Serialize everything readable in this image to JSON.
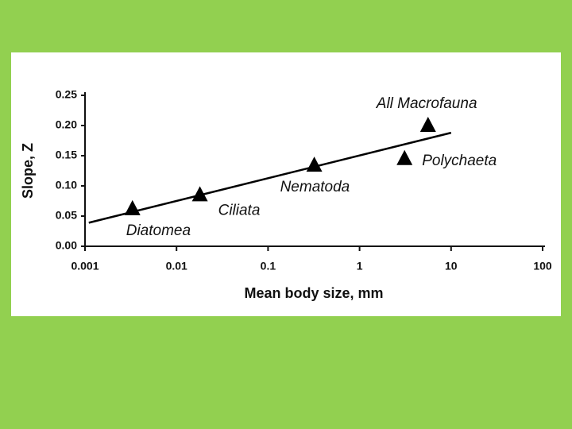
{
  "chart_data": {
    "type": "scatter",
    "xlabel": "Mean body size, mm",
    "ylabel": "Slope, Z",
    "x": [
      0.0033,
      0.018,
      0.32,
      3.1,
      5.6
    ],
    "values": [
      0.062,
      0.085,
      0.134,
      0.145,
      0.2
    ],
    "labels": [
      "Diatomea",
      "Ciliata",
      "Nematoda",
      "Polychaeta",
      "All Macrofauna"
    ],
    "fit": {
      "x": [
        0.0011,
        10
      ],
      "values": [
        0.039,
        0.188
      ]
    },
    "color": "#000000",
    "xscale": "log",
    "xlim": [
      0.001,
      100
    ],
    "xticks": [
      0.001,
      0.01,
      0.1,
      1,
      10,
      100
    ],
    "ylim": [
      0,
      0.25
    ],
    "yticks": [
      {
        "value": 0,
        "label": "0.00"
      },
      0.05,
      {
        "value": 0.1,
        "label": "0.10"
      },
      0.15,
      {
        "value": 0.2,
        "label": "0.20"
      },
      0.25
    ]
  }
}
